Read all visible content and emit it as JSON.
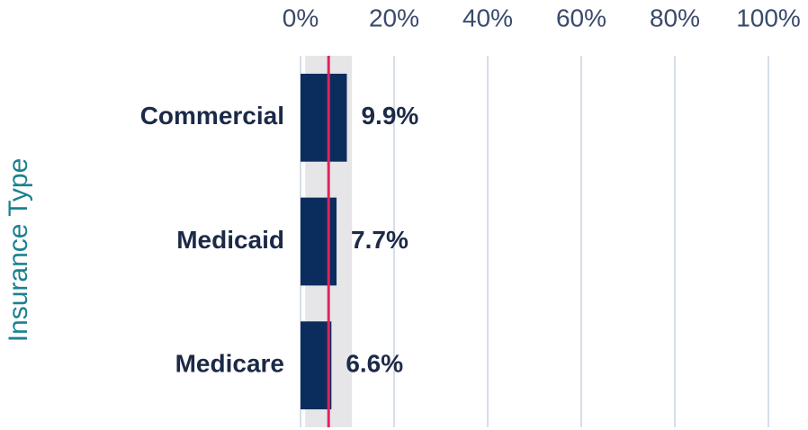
{
  "chart_data": {
    "type": "bar",
    "orientation": "horizontal",
    "y_label": "Insurance Type",
    "categories": [
      "Commercial",
      "Medicaid",
      "Medicare"
    ],
    "values": [
      9.9,
      7.7,
      6.6
    ],
    "value_labels": [
      "9.9%",
      "7.7%",
      "6.6%"
    ],
    "color": "#0b2d5e",
    "xlim": [
      0,
      100
    ],
    "xticks": [
      {
        "value": 0,
        "label": "0%"
      },
      {
        "value": 20,
        "label": "20%"
      },
      {
        "value": 40,
        "label": "40%"
      },
      {
        "value": 60,
        "label": "60%"
      },
      {
        "value": 80,
        "label": "80%"
      },
      {
        "value": 100,
        "label": "100%"
      }
    ],
    "grid": true,
    "reference_band": [
      1,
      11
    ],
    "reference_band_color": "#e6e6e8",
    "reference_line": 6,
    "reference_line_color": "#e0245e"
  }
}
